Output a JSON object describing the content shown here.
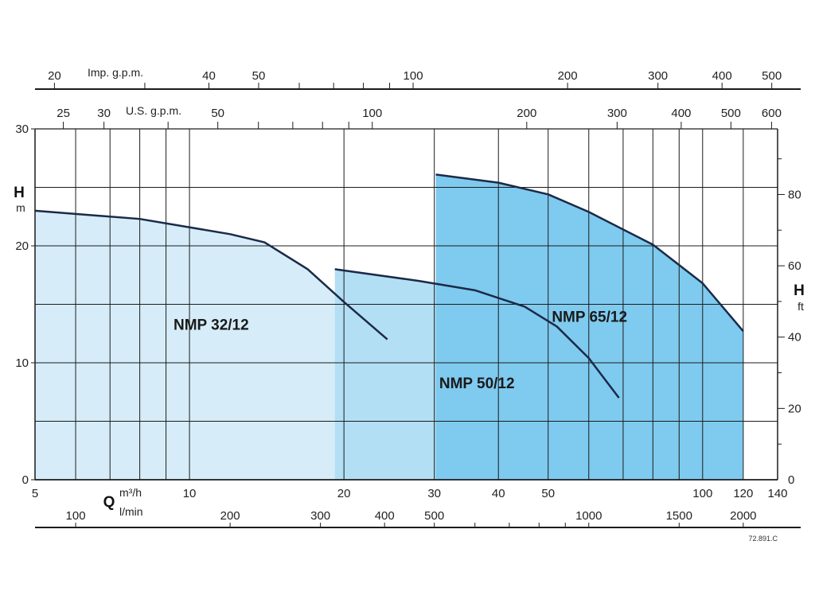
{
  "chart_data": {
    "type": "area",
    "title": "",
    "code": "72.891.C",
    "y_left": {
      "letter": "H",
      "unit": "m",
      "range": [
        0,
        30
      ],
      "ticks": [
        0,
        10,
        20,
        30
      ]
    },
    "y_right": {
      "letter": "H",
      "unit": "ft",
      "range": [
        0,
        98.4
      ],
      "ticks": [
        0,
        20,
        40,
        60,
        80
      ]
    },
    "x_flow_m3h": {
      "letter": "Q",
      "unit": "m³/h",
      "scale": "log",
      "range": [
        5,
        140
      ],
      "ticks": [
        5,
        10,
        20,
        30,
        40,
        50,
        100,
        120,
        140
      ]
    },
    "x_flow_lmin": {
      "unit": "l/min",
      "ticks": [
        100,
        200,
        300,
        400,
        500,
        1000,
        1500,
        2000
      ]
    },
    "x_us_gpm": {
      "unit": "U.S. g.p.m.",
      "ticks": [
        25,
        30,
        50,
        100,
        200,
        300,
        400,
        500,
        600
      ]
    },
    "x_imp_gpm": {
      "unit": "Imp. g.p.m.",
      "ticks": [
        20,
        40,
        50,
        100,
        200,
        300,
        400,
        500
      ]
    },
    "grid": true,
    "series": [
      {
        "name": "NMP 32/12",
        "color": "#d6edf9",
        "x": [
          5,
          8,
          12,
          14,
          17,
          20,
          24.3
        ],
        "y": [
          23.0,
          22.3,
          21.0,
          20.3,
          18.0,
          15.2,
          12.0
        ]
      },
      {
        "name": "NMP 50/12",
        "color": "#b3dff4",
        "x": [
          19.2,
          28,
          36,
          45,
          52,
          60,
          68.7
        ],
        "y": [
          18.0,
          17.0,
          16.2,
          14.8,
          13.1,
          10.4,
          7.0
        ]
      },
      {
        "name": "NMP 65/12",
        "color": "#7fcaef",
        "x": [
          30.2,
          40,
          50,
          60,
          80,
          100,
          120
        ],
        "y": [
          26.1,
          25.4,
          24.4,
          22.9,
          20.1,
          16.8,
          12.7
        ]
      }
    ]
  }
}
